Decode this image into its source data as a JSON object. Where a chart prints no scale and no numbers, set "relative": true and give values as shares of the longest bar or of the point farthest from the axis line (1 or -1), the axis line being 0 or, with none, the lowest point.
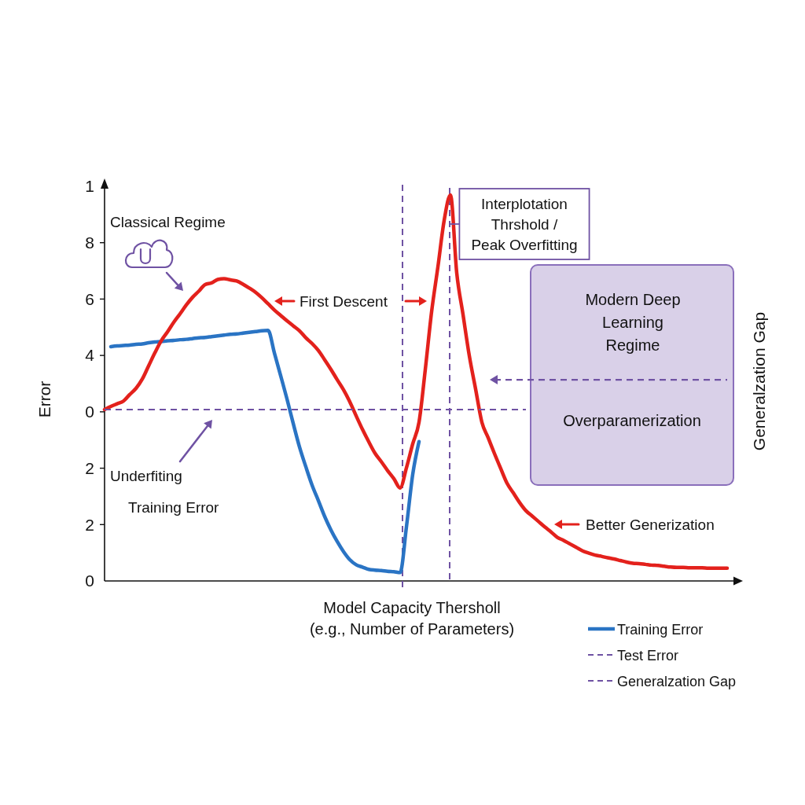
{
  "chart_data": {
    "type": "line",
    "relative": true,
    "xlabel": "Model Capacity Thersholl\n(e.g., Number of Parameters)",
    "ylabel": "Error",
    "categories": [
      null,
      null,
      null,
      null,
      null,
      null,
      null,
      null,
      null,
      null,
      null,
      null,
      null,
      null,
      null,
      null,
      null,
      null,
      null,
      null,
      null,
      null,
      null,
      null,
      null,
      null,
      null,
      null,
      null,
      null,
      null,
      null,
      null,
      null,
      null,
      null,
      null,
      null,
      null,
      null,
      null,
      null,
      null,
      null,
      null,
      null,
      null,
      null,
      null,
      null,
      null,
      null,
      null,
      null,
      null,
      null,
      null,
      null,
      null,
      null,
      null,
      null,
      null,
      null,
      null,
      null,
      null,
      null,
      null,
      null,
      null,
      null,
      null,
      null,
      null,
      null,
      null,
      null,
      null,
      null,
      null,
      null,
      null,
      null,
      null,
      null,
      null,
      null,
      null,
      null,
      null,
      null,
      null,
      null,
      null,
      null,
      null,
      null,
      null,
      null
    ],
    "series": [
      {
        "name": "Training Error",
        "color": "#2a74c4",
        "values": [
          null,
          0.607,
          0.609,
          0.61,
          0.611,
          0.613,
          0.614,
          0.617,
          0.619,
          0.62,
          0.622,
          0.623,
          0.625,
          0.626,
          0.628,
          0.63,
          0.631,
          0.633,
          0.635,
          0.637,
          0.639,
          0.64,
          0.642,
          0.644,
          0.646,
          0.648,
          0.649,
          0.591,
          0.532,
          0.472,
          0.408,
          0.347,
          0.296,
          0.248,
          0.208,
          0.167,
          0.132,
          0.102,
          0.076,
          0.055,
          0.042,
          0.036,
          0.03,
          0.028,
          0.027,
          0.025,
          0.024,
          0.022,
          0.14,
          0.276,
          0.361,
          null,
          null,
          null,
          null,
          null,
          null,
          null,
          null,
          null,
          null,
          null,
          null,
          null,
          null,
          null,
          null,
          null,
          null,
          null,
          null,
          null,
          null,
          null,
          null,
          null,
          null,
          null,
          null,
          null,
          null,
          null,
          null,
          null,
          null,
          null,
          null,
          null,
          null,
          null,
          null,
          null,
          null,
          null,
          null,
          null,
          null,
          null,
          null,
          null
        ]
      },
      {
        "color": "#e3211c",
        "values": [
          0.444,
          0.452,
          0.459,
          0.466,
          0.483,
          0.499,
          0.523,
          0.557,
          0.591,
          0.622,
          0.645,
          0.67,
          0.692,
          0.715,
          0.735,
          0.751,
          0.768,
          0.772,
          0.781,
          0.783,
          0.78,
          0.777,
          0.769,
          0.759,
          0.748,
          0.734,
          0.718,
          0.702,
          0.688,
          0.674,
          0.661,
          0.648,
          0.63,
          0.615,
          0.597,
          0.573,
          0.548,
          0.521,
          0.495,
          0.464,
          0.428,
          0.393,
          0.361,
          0.331,
          0.309,
          0.286,
          0.265,
          0.241,
          0.293,
          0.355,
          0.411,
          0.548,
          0.697,
          0.813,
          0.934,
          1,
          0.798,
          0.69,
          0.583,
          0.497,
          0.411,
          0.371,
          0.33,
          0.291,
          0.253,
          0.228,
          0.203,
          0.182,
          0.168,
          0.154,
          0.14,
          0.127,
          0.113,
          0.105,
          0.096,
          0.087,
          0.078,
          0.072,
          0.067,
          0.064,
          0.06,
          0.057,
          0.053,
          0.049,
          0.046,
          0.045,
          0.043,
          0.041,
          0.04,
          0.038,
          0.036,
          0.035,
          0.035,
          0.034,
          0.034,
          0.034,
          0.033,
          0.033,
          0.033,
          0.033
        ]
      },
      {
        "name": "Test Error",
        "color": "#6f52a3",
        "line_style": "dashed",
        "values": [
          0.444,
          0.444,
          0.444,
          0.444,
          0.444,
          0.444,
          0.444,
          0.444,
          0.444,
          0.444,
          0.444,
          0.444,
          0.444,
          0.444,
          0.444,
          0.444,
          0.444,
          0.444,
          0.444,
          0.444,
          0.444,
          0.444,
          0.444,
          0.444,
          0.444,
          0.444,
          0.444,
          0.444,
          0.444,
          0.444,
          0.444,
          0.444,
          0.444,
          0.444,
          0.444,
          0.444,
          0.444,
          0.444,
          0.444,
          0.444,
          0.444,
          0.444,
          0.444,
          0.444,
          0.444,
          0.444,
          0.444,
          0.444,
          0.444,
          0.444,
          0.444,
          0.444,
          0.444,
          0.444,
          0.444,
          0.444,
          0.444,
          0.444,
          0.444,
          0.444,
          0.444,
          0.444,
          0.444,
          0.444,
          0.444,
          0.444,
          0.444,
          0.444,
          null,
          null,
          null,
          null,
          null,
          null,
          null,
          null,
          null,
          null,
          null,
          null,
          null,
          null,
          null,
          null,
          null,
          null,
          null,
          null,
          null,
          null,
          null,
          null,
          null,
          null,
          null,
          null,
          null,
          null,
          null,
          null
        ]
      },
      {
        "name": "Generalzation Gap",
        "color": "#6f52a3",
        "line_style": "dashed",
        "values": [
          null,
          null,
          null,
          null,
          null,
          null,
          null,
          null,
          null,
          null,
          null,
          null,
          null,
          null,
          null,
          null,
          null,
          null,
          null,
          null,
          null,
          null,
          null,
          null,
          null,
          null,
          null,
          null,
          null,
          null,
          null,
          null,
          null,
          null,
          null,
          null,
          null,
          null,
          null,
          null,
          null,
          null,
          null,
          null,
          null,
          null,
          null,
          null,
          null,
          null,
          null,
          null,
          null,
          null,
          null,
          null,
          null,
          null,
          null,
          null,
          null,
          null,
          0.521,
          0.521,
          0.521,
          0.521,
          0.521,
          0.521,
          0.521,
          0.521,
          0.521,
          0.521,
          0.521,
          0.521,
          0.521,
          0.521,
          0.521,
          0.521,
          0.521,
          0.521,
          0.521,
          0.521,
          0.521,
          0.521,
          0.521,
          0.521,
          0.521,
          0.521,
          0.521,
          0.521,
          0.521,
          0.521,
          0.521,
          0.521,
          0.521,
          0.521,
          0.521,
          0.521,
          0.521,
          0.521
        ]
      }
    ],
    "legend": "bottom right",
    "annotations": [
      "Classical Regime",
      "First Descent",
      "Underfiting",
      "Training Error",
      "Modern Deep\nLearning\nRegime",
      "Overparamerization",
      "Generalzation Gap",
      "Better Generization",
      "Interplotation\nThrshold /\nPeak Overfitting",
      "1",
      "8",
      "6",
      "4",
      "0",
      "2",
      "2",
      "0"
    ]
  }
}
